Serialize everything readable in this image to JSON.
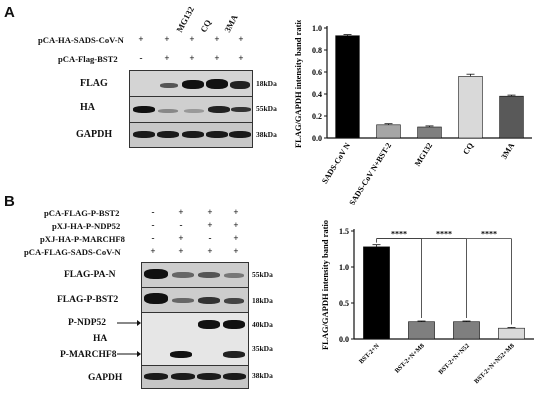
{
  "panelA": {
    "letter": "A",
    "treatments": [
      "MG132",
      "CQ",
      "3MA"
    ],
    "rows": [
      {
        "label": "pCA-HA-SADS-CoV-N",
        "signs": [
          "+",
          "+",
          "+",
          "+",
          "+"
        ]
      },
      {
        "label": "pCA-Flag-BST2",
        "signs": [
          "-",
          "+",
          "+",
          "+",
          "+"
        ]
      }
    ],
    "blots": [
      {
        "label": "FLAG",
        "kda": "18kDa"
      },
      {
        "label": "HA",
        "kda": "55kDa"
      },
      {
        "label": "GAPDH",
        "kda": "38kDa"
      }
    ],
    "chart_data": {
      "type": "bar",
      "ylabel": "FLAG/GAPDH intensity band ratio",
      "categories": [
        "SADS-CoV N",
        "SADS-CoV N+BST-2",
        "MG132",
        "CQ",
        "3MA"
      ],
      "values": [
        0.93,
        0.12,
        0.1,
        0.56,
        0.38
      ],
      "errors": [
        0.01,
        0.01,
        0.01,
        0.02,
        0.01
      ],
      "colors": [
        "#000000",
        "#a6a6a6",
        "#7f7f7f",
        "#d9d9d9",
        "#595959"
      ],
      "ylim": [
        0,
        1.0
      ],
      "yticks": [
        "0.0",
        "0.2",
        "0.4",
        "0.6",
        "0.8",
        "1.0"
      ]
    }
  },
  "panelB": {
    "letter": "B",
    "rows": [
      {
        "label": "pCA-FLAG-P-BST2",
        "signs": [
          "-",
          "+",
          "+",
          "+"
        ]
      },
      {
        "label": "pXJ-HA-P-NDP52",
        "signs": [
          "-",
          "-",
          "+",
          "+"
        ]
      },
      {
        "label": "pXJ-HA-P-MARCHF8",
        "signs": [
          "-",
          "+",
          "-",
          "+"
        ]
      },
      {
        "label": "pCA-FLAG-SADS-CoV-N",
        "signs": [
          "+",
          "+",
          "+",
          "+"
        ]
      }
    ],
    "blots": [
      {
        "label": "FLAG-PA-N",
        "kda": "55kDa"
      },
      {
        "label": "FLAG-P-BST2",
        "kda": "18kDa"
      },
      {
        "label": "P-NDP52",
        "kda": "40kDa"
      },
      {
        "label": "HA",
        "kda": ""
      },
      {
        "label": "P-MARCHF8",
        "kda": "35kDa"
      },
      {
        "label": "GAPDH",
        "kda": "38kDa"
      }
    ],
    "chart_data": {
      "type": "bar",
      "ylabel": "FLAG/GAPDH intensity band ratio",
      "categories": [
        "BST-2+N",
        "BST-2+N+M8",
        "BST-2+N+N52",
        "BST-2+N+N52+M8"
      ],
      "values": [
        1.28,
        0.24,
        0.24,
        0.15
      ],
      "errors": [
        0.03,
        0.01,
        0.01,
        0.01
      ],
      "colors": [
        "#000000",
        "#7f7f7f",
        "#7f7f7f",
        "#d9d9d9"
      ],
      "ylim": [
        0,
        1.5
      ],
      "yticks": [
        "0.0",
        "0.5",
        "1.0",
        "1.5"
      ],
      "significance": [
        "****",
        "****",
        "****"
      ]
    }
  }
}
